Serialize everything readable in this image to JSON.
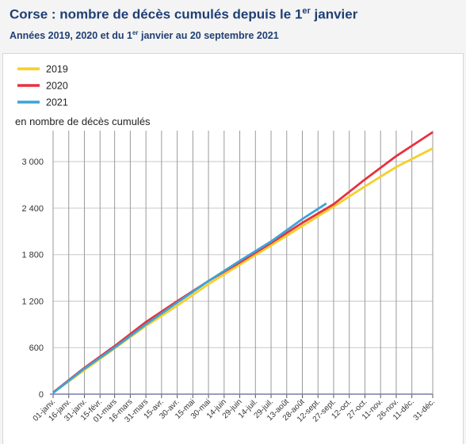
{
  "header": {
    "title_main": "Corse : nombre de décès cumulés depuis le 1",
    "title_sup": "er",
    "title_end": " janvier",
    "subtitle_main": "Années 2019, 2020 et du 1",
    "subtitle_sup": "er",
    "subtitle_end": " janvier au 20 septembre 2021"
  },
  "chart_data": {
    "type": "line",
    "ylabel": "en nombre de décès cumulés",
    "ylim": [
      0,
      3400
    ],
    "yticks": [
      0,
      600,
      1200,
      1800,
      2400,
      3000
    ],
    "ytick_labels": [
      "0",
      "600",
      "1 200",
      "1 800",
      "2 400",
      "3 000"
    ],
    "x_tick_labels": [
      "01-janv.",
      "16-janv.",
      "31-janv.",
      "15-févr.",
      "01-mars",
      "16-mars",
      "31-mars",
      "15-avr.",
      "30-avr.",
      "15-mai",
      "30-mai",
      "14-juin",
      "29-juin",
      "14-juil.",
      "29-juil.",
      "13-août",
      "28-août",
      "12-sept.",
      "27-sept.",
      "12-oct.",
      "27-oct.",
      "11-nov.",
      "26-nov.",
      "11-déc.",
      "31-déc."
    ],
    "x_tick_days": [
      1,
      16,
      31,
      46,
      60,
      75,
      90,
      105,
      120,
      135,
      150,
      165,
      180,
      195,
      210,
      225,
      240,
      255,
      270,
      285,
      300,
      315,
      330,
      345,
      365
    ],
    "x_unit": "day of year",
    "grid": true,
    "legend_position": "top-left",
    "series": [
      {
        "name": "2019",
        "color": "#f5cf2b",
        "x": [
          1,
          30,
          60,
          90,
          120,
          150,
          180,
          210,
          240,
          270,
          300,
          330,
          365
        ],
        "values": [
          20,
          300,
          590,
          880,
          1140,
          1420,
          1670,
          1920,
          2170,
          2420,
          2680,
          2930,
          3170
        ]
      },
      {
        "name": "2020",
        "color": "#e8313e",
        "x": [
          1,
          30,
          60,
          90,
          120,
          150,
          180,
          210,
          240,
          270,
          300,
          330,
          365
        ],
        "values": [
          20,
          330,
          620,
          930,
          1200,
          1460,
          1700,
          1950,
          2210,
          2450,
          2770,
          3070,
          3380
        ]
      },
      {
        "name": "2021",
        "color": "#3ca4d8",
        "x": [
          1,
          30,
          60,
          90,
          120,
          150,
          180,
          210,
          240,
          263
        ],
        "values": [
          15,
          320,
          600,
          900,
          1180,
          1460,
          1720,
          1970,
          2260,
          2460
        ]
      }
    ]
  }
}
